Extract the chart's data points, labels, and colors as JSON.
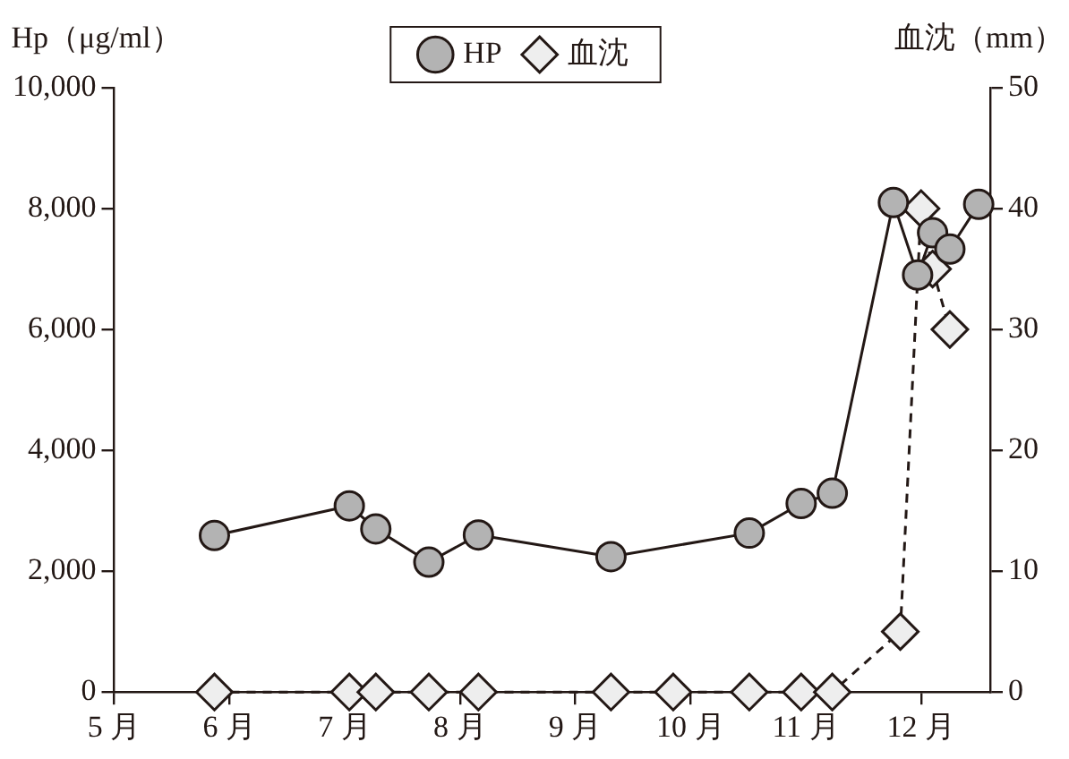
{
  "chart_data": {
    "type": "line",
    "ylabel": "Hp（μg/ml）",
    "y2label": "血沈（mm）",
    "legend": "top",
    "grid": false,
    "xlim": [
      5,
      12.6
    ],
    "xticks": [
      {
        "value": 5,
        "label": "5 月"
      },
      {
        "value": 6,
        "label": "6 月"
      },
      {
        "value": 7,
        "label": "7 月"
      },
      {
        "value": 8,
        "label": "8 月"
      },
      {
        "value": 9,
        "label": "9 月"
      },
      {
        "value": 10,
        "label": "10 月"
      },
      {
        "value": 11,
        "label": "11 月"
      },
      {
        "value": 12,
        "label": "12 月"
      }
    ],
    "ylim": [
      0,
      10000
    ],
    "yticks": [
      0,
      {
        "value": 2000,
        "label": "2,000"
      },
      {
        "value": 4000,
        "label": "4,000"
      },
      {
        "value": 6000,
        "label": "6,000"
      },
      {
        "value": 8000,
        "label": "8,000"
      },
      {
        "value": 10000,
        "label": "10,000"
      }
    ],
    "y2lim": [
      0,
      50
    ],
    "y2ticks": [
      0,
      10,
      20,
      30,
      40,
      50
    ],
    "series": [
      {
        "name": "HP",
        "color": "#b3b3b3",
        "marker": "circle",
        "line_style": "solid",
        "x": [
          5.87,
          7.04,
          7.27,
          7.73,
          8.16,
          9.31,
          10.51,
          10.96,
          11.23,
          11.76,
          11.97,
          12.1,
          12.25,
          12.5
        ],
        "values": [
          2590,
          3080,
          2700,
          2150,
          2600,
          2240,
          2630,
          3120,
          3290,
          8100,
          6900,
          7600,
          7330,
          8070
        ]
      },
      {
        "name": "血沈",
        "color": "#eeeeee",
        "marker": "diamond",
        "line_style": "dashed",
        "axis": "y2",
        "x": [
          5.87,
          7.04,
          7.27,
          7.73,
          8.16,
          9.31,
          9.85,
          10.51,
          10.96,
          11.23,
          11.82,
          12.0,
          12.1,
          12.25
        ],
        "values": [
          0,
          0,
          0,
          0,
          0,
          0,
          0,
          0,
          0,
          0,
          5,
          40,
          35,
          30
        ]
      }
    ]
  }
}
